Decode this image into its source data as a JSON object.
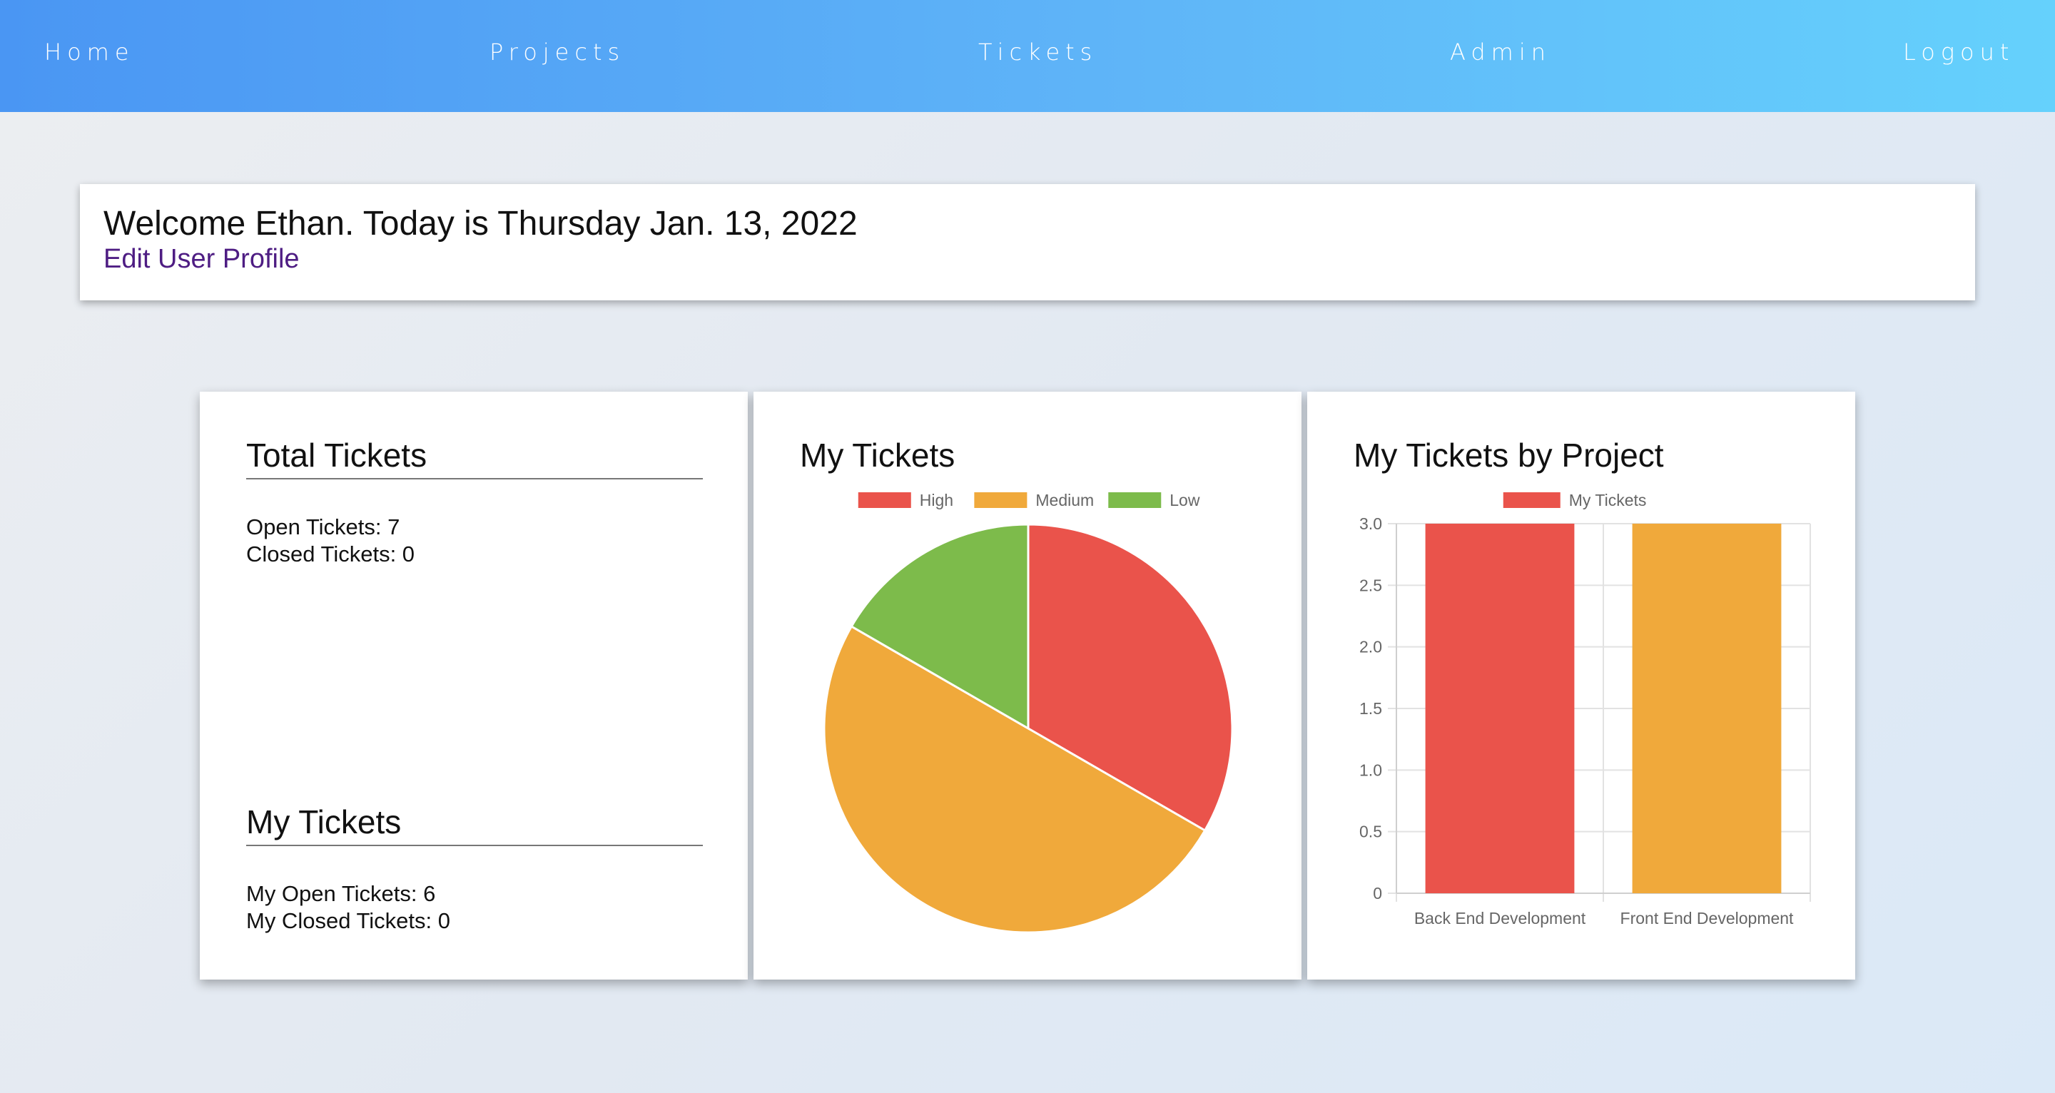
{
  "nav": {
    "home": "Home",
    "projects": "Projects",
    "tickets": "Tickets",
    "admin": "Admin",
    "logout": "Logout"
  },
  "welcome": {
    "message": "Welcome Ethan. Today is Thursday Jan. 13, 2022",
    "edit_profile": "Edit User Profile"
  },
  "total_card": {
    "heading": "Total Tickets",
    "open": "Open Tickets: 7",
    "closed": "Closed Tickets: 0",
    "my_heading": "My Tickets",
    "my_open": "My Open Tickets: 6",
    "my_closed": "My Closed Tickets: 0"
  },
  "pie_card": {
    "heading": "My Tickets"
  },
  "bar_card": {
    "heading": "My Tickets by Project"
  },
  "colors": {
    "nav_gradient_start": "#4a96f3",
    "nav_gradient_end": "#65d1fc",
    "high": "#ea534b",
    "medium": "#f0a93b",
    "low": "#7dbb4b",
    "link": "#4e1d83"
  },
  "chart_data": [
    {
      "type": "pie",
      "title": "My Tickets",
      "categories": [
        "High",
        "Medium",
        "Low"
      ],
      "values": [
        2,
        3,
        1
      ],
      "colors": [
        "#ea534b",
        "#f0a93b",
        "#7dbb4b"
      ],
      "legend": "top"
    },
    {
      "type": "bar",
      "title": "My Tickets by Project",
      "categories": [
        "Back End Development",
        "Front End Development"
      ],
      "series": [
        {
          "name": "My Tickets",
          "values": [
            3,
            3
          ]
        }
      ],
      "bar_colors": [
        "#ea534b",
        "#f0a93b"
      ],
      "ylim": [
        0,
        3
      ],
      "yticks": [
        "0",
        "0.5",
        "1.0",
        "1.5",
        "2.0",
        "2.5",
        "3.0"
      ],
      "grid": true,
      "legend": "top"
    }
  ]
}
